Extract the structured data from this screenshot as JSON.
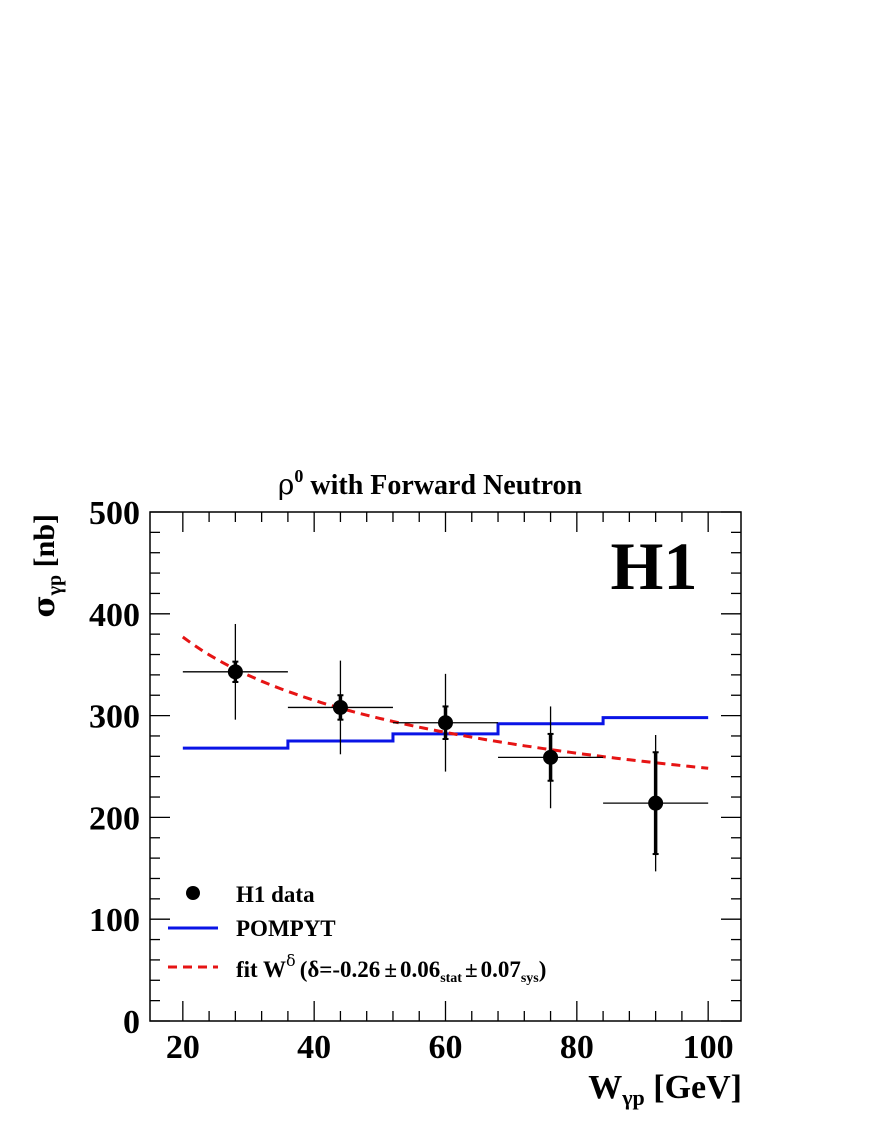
{
  "chart_data": {
    "type": "scatter",
    "title": "ρ",
    "title_sup": "0",
    "title_rest": " with Forward Neutron",
    "experiment_label": "H1",
    "xlabel": {
      "main": "W",
      "sub": "γp",
      "unit": " [GeV]"
    },
    "ylabel": {
      "main": "σ",
      "sub": "γp",
      "unit": " [nb]"
    },
    "xlim": [
      15,
      105
    ],
    "ylim": [
      0,
      500
    ],
    "xticks": [
      "20",
      "40",
      "60",
      "80",
      "100"
    ],
    "yticks": [
      "0",
      "100",
      "200",
      "300",
      "400",
      "500"
    ],
    "grid": false,
    "legend_position": "bottom-left",
    "series": [
      {
        "name": "H1 data",
        "kind": "points",
        "color": "#000000",
        "points": [
          {
            "x": 28,
            "xlow": 20,
            "xhigh": 36,
            "y": 343,
            "stat": 10,
            "tot": 47
          },
          {
            "x": 44,
            "xlow": 36,
            "xhigh": 52,
            "y": 308,
            "stat": 12,
            "tot": 46
          },
          {
            "x": 60,
            "xlow": 52,
            "xhigh": 68,
            "y": 293,
            "stat": 16,
            "tot": 48
          },
          {
            "x": 76,
            "xlow": 68,
            "xhigh": 84,
            "y": 259,
            "stat": 23,
            "tot": 50
          },
          {
            "x": 92,
            "xlow": 84,
            "xhigh": 100,
            "y": 214,
            "stat": 50,
            "tot": 67
          }
        ]
      },
      {
        "name": "POMPYT",
        "kind": "step",
        "color": "#0a14e6",
        "bins": [
          {
            "xlow": 20,
            "xhigh": 36,
            "y": 268
          },
          {
            "xlow": 36,
            "xhigh": 52,
            "y": 275
          },
          {
            "xlow": 52,
            "xhigh": 68,
            "y": 282
          },
          {
            "xlow": 68,
            "xhigh": 84,
            "y": 292
          },
          {
            "xlow": 84,
            "xhigh": 100,
            "y": 298
          }
        ]
      },
      {
        "name": "fit W^δ (δ=-0.26 ± 0.06 stat ± 0.07 sys)",
        "kind": "dashed-curve",
        "color": "#e61414",
        "model": "a*x^b",
        "a": 822,
        "b": -0.26,
        "xrange": [
          20,
          100
        ]
      }
    ],
    "legend": {
      "data": "H1 data",
      "pompyt": "POMPYT",
      "fit_prefix": "fit W",
      "fit_sup": "δ",
      "fit_open": "(δ=-0.26",
      "pm": "±",
      "stat_val": "0.06",
      "stat_sub": "stat",
      "sys_val": "0.07",
      "sys_sub": "sys",
      "fit_close": ")"
    }
  }
}
